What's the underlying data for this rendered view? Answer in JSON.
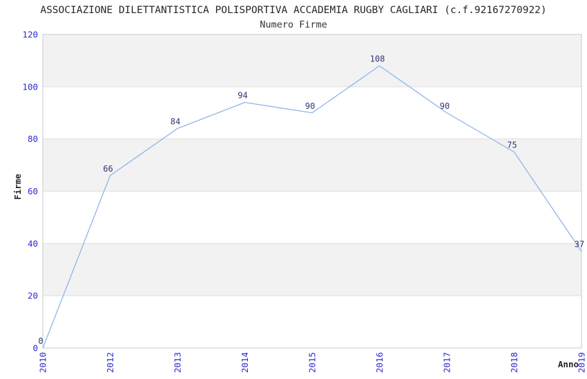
{
  "header": {
    "title": "ASSOCIAZIONE DILETTANTISTICA POLISPORTIVA ACCADEMIA RUGBY CAGLIARI (c.f.92167270922)",
    "subtitle": "Numero Firme"
  },
  "chart_data": {
    "type": "line",
    "title": "ASSOCIAZIONE DILETTANTISTICA POLISPORTIVA ACCADEMIA RUGBY CAGLIARI (c.f.92167270922)",
    "subtitle": "Numero Firme",
    "categories": [
      "2010",
      "2012",
      "2013",
      "2014",
      "2015",
      "2016",
      "2017",
      "2018",
      "2019"
    ],
    "values": [
      0,
      66,
      84,
      94,
      90,
      108,
      90,
      75,
      37
    ],
    "point_labels": [
      "0",
      "66",
      "84",
      "94",
      "90",
      "108",
      "90",
      "75",
      "37"
    ],
    "xlabel": "Anno",
    "ylabel": "Firme",
    "ylim": [
      0,
      120
    ],
    "yticks": [
      0,
      20,
      40,
      60,
      80,
      100,
      120
    ],
    "grid": "horizontal-alternating-bands",
    "legend": "none",
    "x_axis_style": "categorical, labels rotated 90deg counterclockwise",
    "colors": {
      "line": "#8db6e8",
      "tick_label": "#2b2bd0",
      "point_label": "#32327d",
      "band": "#f2f2f2",
      "grid": "#dedede",
      "border": "#c9c9c9",
      "text": "#262626"
    }
  }
}
